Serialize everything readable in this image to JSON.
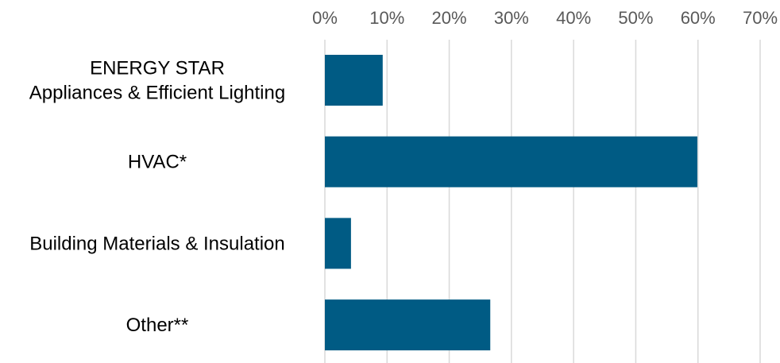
{
  "chart_data": {
    "type": "bar",
    "orientation": "horizontal",
    "categories": [
      [
        "ENERGY STAR",
        "Appliances & Efficient Lighting"
      ],
      [
        "HVAC*"
      ],
      [
        "Building Materials & Insulation"
      ],
      [
        "Other**"
      ]
    ],
    "values": [
      9.3,
      59.9,
      4.2,
      26.6
    ],
    "xlim": [
      0,
      70
    ],
    "xticks": [
      0,
      10,
      20,
      30,
      40,
      50,
      60,
      70
    ],
    "tick_suffix": "%",
    "tick_position": "top",
    "grid": true,
    "legend": "none",
    "bar_color": "#005B84",
    "grid_color": "#D9D9D9"
  }
}
